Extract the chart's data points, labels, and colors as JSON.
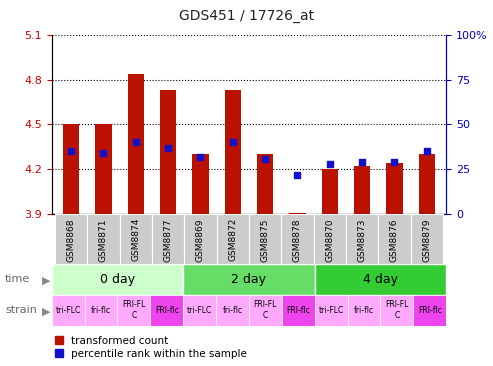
{
  "title": "GDS451 / 17726_at",
  "samples": [
    "GSM8868",
    "GSM8871",
    "GSM8874",
    "GSM8877",
    "GSM8869",
    "GSM8872",
    "GSM8875",
    "GSM8878",
    "GSM8870",
    "GSM8873",
    "GSM8876",
    "GSM8879"
  ],
  "transformed_counts": [
    4.5,
    4.5,
    4.84,
    4.73,
    4.3,
    4.73,
    4.3,
    3.91,
    4.2,
    4.22,
    4.24,
    4.3
  ],
  "percentile_ranks": [
    35,
    34,
    40,
    37,
    32,
    40,
    31,
    22,
    28,
    29,
    29,
    35
  ],
  "y_min": 3.9,
  "y_max": 5.1,
  "y_ticks": [
    3.9,
    4.2,
    4.5,
    4.8,
    5.1
  ],
  "y2_ticks": [
    0,
    25,
    50,
    75,
    100
  ],
  "time_groups": [
    {
      "label": "0 day",
      "start": 0,
      "end": 4
    },
    {
      "label": "2 day",
      "start": 4,
      "end": 8
    },
    {
      "label": "4 day",
      "start": 8,
      "end": 12
    }
  ],
  "time_colors": [
    "#ccffcc",
    "#66dd66",
    "#33cc33"
  ],
  "strain_labels": [
    "tri-FLC",
    "fri-flc",
    "FRI-FL\nC",
    "FRI-flc",
    "tri-FLC",
    "fri-flc",
    "FRI-FL\nC",
    "FRI-flc",
    "tri-FLC",
    "fri-flc",
    "FRI-FL\nC",
    "FRI-flc"
  ],
  "strain_colors": [
    "#ffaaff",
    "#ffaaff",
    "#ffaaff",
    "#ee44ee",
    "#ffaaff",
    "#ffaaff",
    "#ffaaff",
    "#ee44ee",
    "#ffaaff",
    "#ffaaff",
    "#ffaaff",
    "#ee44ee"
  ],
  "bar_color": "#bb1100",
  "dot_color": "#1111cc",
  "bar_width": 0.5,
  "baseline": 3.9,
  "left_tick_color": "#cc0000",
  "right_tick_color": "#0000bb",
  "xtick_bg_color": "#cccccc",
  "title_fontsize": 10,
  "legend_fontsize": 7.5
}
